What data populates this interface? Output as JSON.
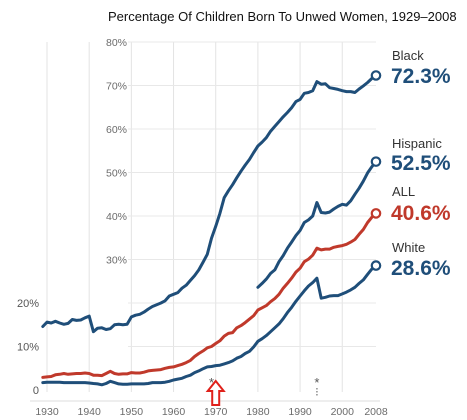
{
  "chart_data": {
    "type": "line",
    "title": "Percentage Of Children Born To Unwed Women, 1929–2008",
    "xlabel": "",
    "ylabel": "",
    "xlim": [
      1929,
      2008
    ],
    "ylim": [
      0,
      80
    ],
    "x_ticks": [
      1930,
      1940,
      1950,
      1960,
      1970,
      1980,
      1990,
      2000,
      2008
    ],
    "y_ticks": [
      0,
      10,
      20,
      30,
      40,
      50,
      60,
      70,
      80
    ],
    "y_tick_labels": [
      "0",
      "10%",
      "20%",
      "30%",
      "40%",
      "50%",
      "60%",
      "70%",
      "80%"
    ],
    "grid": true,
    "annotations": [
      {
        "text": "*",
        "x": 1969
      },
      {
        "text": "*",
        "x": 1994
      }
    ],
    "highlight_marker": {
      "kind": "up-arrow",
      "x": 1970,
      "color": "#e0211b"
    },
    "series": [
      {
        "name": "Black",
        "end_label": "72.3%",
        "color": "#1f4e79",
        "points": [
          [
            1929,
            14.6
          ],
          [
            1930,
            15.6
          ],
          [
            1931,
            15.4
          ],
          [
            1932,
            15.8
          ],
          [
            1933,
            15.4
          ],
          [
            1934,
            15.1
          ],
          [
            1935,
            15.3
          ],
          [
            1936,
            16.2
          ],
          [
            1937,
            16.0
          ],
          [
            1938,
            16.1
          ],
          [
            1939,
            16.6
          ],
          [
            1940,
            17.0
          ],
          [
            1941,
            13.4
          ],
          [
            1942,
            14.2
          ],
          [
            1943,
            14.3
          ],
          [
            1944,
            13.9
          ],
          [
            1945,
            14.1
          ],
          [
            1946,
            15.0
          ],
          [
            1947,
            15.1
          ],
          [
            1948,
            15.0
          ],
          [
            1949,
            15.1
          ],
          [
            1950,
            16.8
          ],
          [
            1951,
            17.2
          ],
          [
            1952,
            17.4
          ],
          [
            1953,
            17.9
          ],
          [
            1954,
            18.6
          ],
          [
            1955,
            19.2
          ],
          [
            1956,
            19.6
          ],
          [
            1957,
            20.0
          ],
          [
            1958,
            20.5
          ],
          [
            1959,
            21.6
          ],
          [
            1960,
            22.0
          ],
          [
            1961,
            22.4
          ],
          [
            1962,
            23.4
          ],
          [
            1963,
            24.1
          ],
          [
            1964,
            25.2
          ],
          [
            1965,
            26.3
          ],
          [
            1966,
            27.6
          ],
          [
            1967,
            29.4
          ],
          [
            1968,
            31.2
          ],
          [
            1969,
            34.9
          ],
          [
            1970,
            37.6
          ],
          [
            1971,
            40.6
          ],
          [
            1972,
            44.2
          ],
          [
            1973,
            45.8
          ],
          [
            1974,
            47.2
          ],
          [
            1975,
            48.8
          ],
          [
            1976,
            50.3
          ],
          [
            1977,
            51.7
          ],
          [
            1978,
            53.0
          ],
          [
            1979,
            54.6
          ],
          [
            1980,
            56.1
          ],
          [
            1981,
            57.0
          ],
          [
            1982,
            58.0
          ],
          [
            1983,
            59.5
          ],
          [
            1984,
            60.6
          ],
          [
            1985,
            61.7
          ],
          [
            1986,
            62.8
          ],
          [
            1987,
            63.8
          ],
          [
            1988,
            64.9
          ],
          [
            1989,
            66.3
          ],
          [
            1990,
            66.8
          ],
          [
            1991,
            68.2
          ],
          [
            1992,
            68.4
          ],
          [
            1993,
            68.8
          ],
          [
            1994,
            70.9
          ],
          [
            1995,
            70.3
          ],
          [
            1996,
            70.4
          ],
          [
            1997,
            69.5
          ],
          [
            1998,
            69.3
          ],
          [
            1999,
            69.1
          ],
          [
            2000,
            68.8
          ],
          [
            2001,
            68.6
          ],
          [
            2002,
            68.6
          ],
          [
            2003,
            68.4
          ],
          [
            2004,
            69.2
          ],
          [
            2005,
            69.9
          ],
          [
            2006,
            70.7
          ],
          [
            2007,
            71.6
          ],
          [
            2008,
            72.3
          ]
        ]
      },
      {
        "name": "Hispanic",
        "end_label": "52.5%",
        "color": "#1f4e79",
        "points": [
          [
            1980,
            23.6
          ],
          [
            1981,
            24.5
          ],
          [
            1982,
            25.5
          ],
          [
            1983,
            26.8
          ],
          [
            1984,
            27.6
          ],
          [
            1985,
            29.5
          ],
          [
            1986,
            30.9
          ],
          [
            1987,
            32.6
          ],
          [
            1988,
            34.0
          ],
          [
            1989,
            35.5
          ],
          [
            1990,
            36.7
          ],
          [
            1991,
            38.5
          ],
          [
            1992,
            39.1
          ],
          [
            1993,
            40.0
          ],
          [
            1994,
            43.1
          ],
          [
            1995,
            40.8
          ],
          [
            1996,
            40.7
          ],
          [
            1997,
            40.9
          ],
          [
            1998,
            41.6
          ],
          [
            1999,
            42.2
          ],
          [
            2000,
            42.7
          ],
          [
            2001,
            42.5
          ],
          [
            2002,
            43.5
          ],
          [
            2003,
            45.0
          ],
          [
            2004,
            46.4
          ],
          [
            2005,
            48.0
          ],
          [
            2006,
            49.9
          ],
          [
            2007,
            51.3
          ],
          [
            2008,
            52.5
          ]
        ]
      },
      {
        "name": "ALL",
        "end_label": "40.6%",
        "color": "#c0392b",
        "points": [
          [
            1929,
            2.9
          ],
          [
            1930,
            3.0
          ],
          [
            1931,
            3.1
          ],
          [
            1932,
            3.5
          ],
          [
            1933,
            3.6
          ],
          [
            1934,
            3.8
          ],
          [
            1935,
            3.6
          ],
          [
            1936,
            3.7
          ],
          [
            1937,
            3.8
          ],
          [
            1938,
            3.8
          ],
          [
            1939,
            3.9
          ],
          [
            1940,
            3.8
          ],
          [
            1941,
            3.4
          ],
          [
            1942,
            3.4
          ],
          [
            1943,
            3.3
          ],
          [
            1944,
            3.8
          ],
          [
            1945,
            4.3
          ],
          [
            1946,
            3.8
          ],
          [
            1947,
            3.6
          ],
          [
            1948,
            3.7
          ],
          [
            1949,
            3.7
          ],
          [
            1950,
            4.0
          ],
          [
            1951,
            3.9
          ],
          [
            1952,
            3.9
          ],
          [
            1953,
            4.1
          ],
          [
            1954,
            4.4
          ],
          [
            1955,
            4.5
          ],
          [
            1956,
            4.6
          ],
          [
            1957,
            4.7
          ],
          [
            1958,
            5.0
          ],
          [
            1959,
            5.2
          ],
          [
            1960,
            5.3
          ],
          [
            1961,
            5.6
          ],
          [
            1962,
            5.9
          ],
          [
            1963,
            6.3
          ],
          [
            1964,
            6.8
          ],
          [
            1965,
            7.7
          ],
          [
            1966,
            8.4
          ],
          [
            1967,
            9.0
          ],
          [
            1968,
            9.7
          ],
          [
            1969,
            10.0
          ],
          [
            1970,
            10.7
          ],
          [
            1971,
            11.3
          ],
          [
            1972,
            12.4
          ],
          [
            1973,
            13.0
          ],
          [
            1974,
            13.2
          ],
          [
            1975,
            14.3
          ],
          [
            1976,
            14.8
          ],
          [
            1977,
            15.5
          ],
          [
            1978,
            16.3
          ],
          [
            1979,
            17.1
          ],
          [
            1980,
            18.4
          ],
          [
            1981,
            18.9
          ],
          [
            1982,
            19.4
          ],
          [
            1983,
            20.3
          ],
          [
            1984,
            21.0
          ],
          [
            1985,
            22.0
          ],
          [
            1986,
            23.4
          ],
          [
            1987,
            24.5
          ],
          [
            1988,
            25.7
          ],
          [
            1989,
            27.1
          ],
          [
            1990,
            28.0
          ],
          [
            1991,
            29.5
          ],
          [
            1992,
            30.1
          ],
          [
            1993,
            31.0
          ],
          [
            1994,
            32.6
          ],
          [
            1995,
            32.2
          ],
          [
            1996,
            32.4
          ],
          [
            1997,
            32.4
          ],
          [
            1998,
            32.8
          ],
          [
            1999,
            33.0
          ],
          [
            2000,
            33.2
          ],
          [
            2001,
            33.5
          ],
          [
            2002,
            34.0
          ],
          [
            2003,
            34.6
          ],
          [
            2004,
            35.8
          ],
          [
            2005,
            36.9
          ],
          [
            2006,
            38.5
          ],
          [
            2007,
            39.7
          ],
          [
            2008,
            40.6
          ]
        ]
      },
      {
        "name": "White",
        "end_label": "28.6%",
        "color": "#1f4e79",
        "points": [
          [
            1929,
            1.7
          ],
          [
            1930,
            1.8
          ],
          [
            1931,
            1.8
          ],
          [
            1932,
            1.8
          ],
          [
            1933,
            1.8
          ],
          [
            1934,
            1.7
          ],
          [
            1935,
            1.7
          ],
          [
            1936,
            1.7
          ],
          [
            1937,
            1.7
          ],
          [
            1938,
            1.7
          ],
          [
            1939,
            1.7
          ],
          [
            1940,
            1.6
          ],
          [
            1941,
            1.5
          ],
          [
            1942,
            1.4
          ],
          [
            1943,
            1.2
          ],
          [
            1944,
            1.5
          ],
          [
            1945,
            2.0
          ],
          [
            1946,
            1.7
          ],
          [
            1947,
            1.4
          ],
          [
            1948,
            1.3
          ],
          [
            1949,
            1.3
          ],
          [
            1950,
            1.4
          ],
          [
            1951,
            1.4
          ],
          [
            1952,
            1.4
          ],
          [
            1953,
            1.4
          ],
          [
            1954,
            1.5
          ],
          [
            1955,
            1.7
          ],
          [
            1956,
            1.7
          ],
          [
            1957,
            1.7
          ],
          [
            1958,
            1.8
          ],
          [
            1959,
            2.0
          ],
          [
            1960,
            2.3
          ],
          [
            1961,
            2.5
          ],
          [
            1962,
            2.7
          ],
          [
            1963,
            3.1
          ],
          [
            1964,
            3.4
          ],
          [
            1965,
            4.0
          ],
          [
            1966,
            4.4
          ],
          [
            1967,
            4.9
          ],
          [
            1968,
            5.3
          ],
          [
            1969,
            5.4
          ],
          [
            1970,
            5.6
          ],
          [
            1971,
            5.7
          ],
          [
            1972,
            6.0
          ],
          [
            1973,
            6.3
          ],
          [
            1974,
            6.7
          ],
          [
            1975,
            7.3
          ],
          [
            1976,
            7.7
          ],
          [
            1977,
            8.4
          ],
          [
            1978,
            8.9
          ],
          [
            1979,
            9.9
          ],
          [
            1980,
            11.2
          ],
          [
            1981,
            11.8
          ],
          [
            1982,
            12.5
          ],
          [
            1983,
            13.4
          ],
          [
            1984,
            14.3
          ],
          [
            1985,
            15.2
          ],
          [
            1986,
            16.4
          ],
          [
            1987,
            17.8
          ],
          [
            1988,
            19.0
          ],
          [
            1989,
            20.4
          ],
          [
            1990,
            21.6
          ],
          [
            1991,
            22.8
          ],
          [
            1992,
            23.9
          ],
          [
            1993,
            24.7
          ],
          [
            1994,
            25.7
          ],
          [
            1995,
            21.1
          ],
          [
            1996,
            21.3
          ],
          [
            1997,
            21.6
          ],
          [
            1998,
            21.7
          ],
          [
            1999,
            21.7
          ],
          [
            2000,
            22.1
          ],
          [
            2001,
            22.5
          ],
          [
            2002,
            23.0
          ],
          [
            2003,
            23.6
          ],
          [
            2004,
            24.5
          ],
          [
            2005,
            25.3
          ],
          [
            2006,
            26.6
          ],
          [
            2007,
            27.8
          ],
          [
            2008,
            28.6
          ]
        ]
      }
    ]
  }
}
